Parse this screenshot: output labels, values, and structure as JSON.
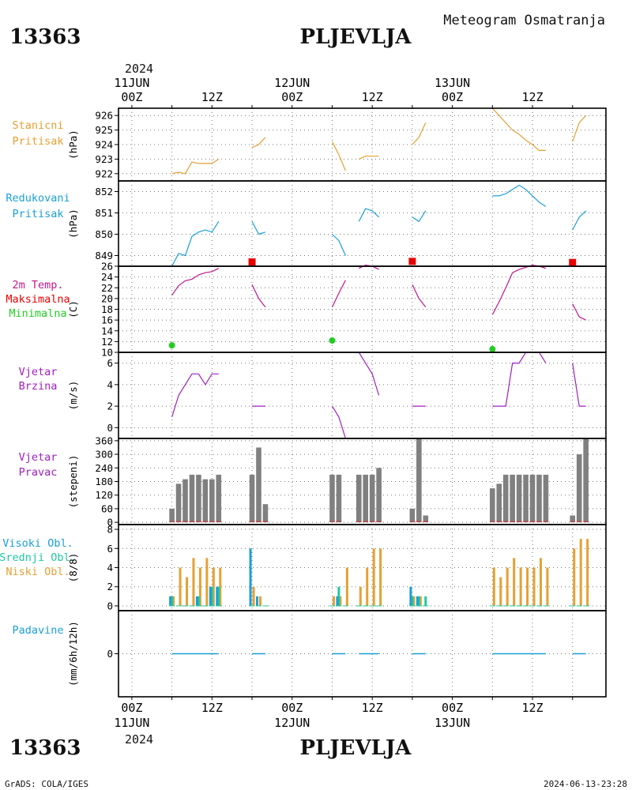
{
  "header": {
    "station_id": "13363",
    "station_name": "PLJEVLJA",
    "product": "Meteogram Osmatranja",
    "year": "2024"
  },
  "footer": {
    "credit": "GrADS: COLA/IGES",
    "timestamp": "2024-06-13-23:28",
    "station_id": "13363",
    "station_name": "PLJEVLJA",
    "year": "2024"
  },
  "time_axis": {
    "labels": [
      {
        "h": 0,
        "hour": "00Z",
        "date": "11JUN"
      },
      {
        "h": 12,
        "hour": "12Z",
        "date": ""
      },
      {
        "h": 24,
        "hour": "00Z",
        "date": "12JUN"
      },
      {
        "h": 36,
        "hour": "12Z",
        "date": ""
      },
      {
        "h": 48,
        "hour": "00Z",
        "date": "13JUN"
      },
      {
        "h": 60,
        "hour": "12Z",
        "date": ""
      }
    ]
  },
  "colors": {
    "station_pressure": "#e6a033",
    "reduced_pressure": "#1aa0d8",
    "tmax": "#e80000",
    "tmin": "#22cc22",
    "temp": "#c0188c",
    "wind": "#a020c0",
    "bars": "#808080",
    "high_cloud": "#1aa0d8",
    "mid_cloud": "#20c8a0",
    "low_cloud": "#e6a033",
    "precip": "#1aa0d8"
  },
  "chart_data": [
    {
      "type": "line",
      "panel": "station_pressure",
      "labels": [
        "Stanicni",
        "Pritisak"
      ],
      "unit": "(hPa)",
      "ylim": [
        921.5,
        926.5
      ],
      "yticks": [
        922,
        923,
        924,
        925,
        926
      ],
      "segments": [
        [
          [
            6,
            922
          ],
          [
            7,
            922.1
          ],
          [
            8,
            922
          ],
          [
            9,
            922.8
          ],
          [
            10,
            922.7
          ],
          [
            11,
            922.7
          ],
          [
            12,
            922.7
          ],
          [
            13,
            923
          ]
        ],
        [
          [
            18,
            923.8
          ],
          [
            19,
            924
          ],
          [
            20,
            924.5
          ]
        ],
        [
          [
            30,
            924.2
          ],
          [
            31,
            923.3
          ],
          [
            32,
            922.2
          ]
        ],
        [
          [
            34,
            923
          ],
          [
            35,
            923.2
          ],
          [
            36,
            923.2
          ],
          [
            37,
            923.2
          ]
        ],
        [
          [
            42,
            924
          ],
          [
            43,
            924.5
          ],
          [
            44,
            925.5
          ]
        ],
        [
          [
            54,
            926.5
          ],
          [
            55,
            926
          ],
          [
            56,
            925.5
          ],
          [
            57,
            925
          ],
          [
            58,
            924.7
          ],
          [
            59,
            924.3
          ],
          [
            60,
            924
          ],
          [
            61,
            923.6
          ],
          [
            62,
            923.6
          ]
        ],
        [
          [
            66,
            924.2
          ],
          [
            67,
            925.5
          ],
          [
            68,
            926
          ]
        ]
      ]
    },
    {
      "type": "line",
      "panel": "reduced_pressure",
      "labels": [
        "Redukovani",
        "Pritisak"
      ],
      "unit": "(hPa)",
      "ylim": [
        848.5,
        852.5
      ],
      "yticks": [
        849,
        850,
        851,
        852
      ],
      "segments": [
        [
          [
            6,
            848.5
          ],
          [
            7,
            849.1
          ],
          [
            8,
            849
          ],
          [
            9,
            849.9
          ],
          [
            10,
            850.1
          ],
          [
            11,
            850.2
          ],
          [
            12,
            850.1
          ],
          [
            13,
            850.6
          ]
        ],
        [
          [
            18,
            850.6
          ],
          [
            19,
            850
          ],
          [
            20,
            850.1
          ]
        ],
        [
          [
            30,
            850
          ],
          [
            31,
            849.7
          ],
          [
            32,
            849
          ]
        ],
        [
          [
            34,
            850.6
          ],
          [
            35,
            851.2
          ],
          [
            36,
            851.1
          ],
          [
            37,
            850.8
          ]
        ],
        [
          [
            42,
            850.8
          ],
          [
            43,
            850.6
          ],
          [
            44,
            851.1
          ]
        ],
        [
          [
            54,
            851.8
          ],
          [
            55,
            851.8
          ],
          [
            56,
            851.9
          ],
          [
            57,
            852.1
          ],
          [
            58,
            852.3
          ],
          [
            59,
            852.1
          ],
          [
            60,
            851.8
          ],
          [
            61,
            851.5
          ],
          [
            62,
            851.3
          ]
        ],
        [
          [
            66,
            850.2
          ],
          [
            67,
            850.8
          ],
          [
            68,
            851.1
          ]
        ]
      ]
    },
    {
      "type": "line",
      "panel": "temperature",
      "labels": [
        "2m Temp.",
        "Maksimalna",
        "Minimalna"
      ],
      "unit": "(C)",
      "ylim": [
        10,
        26
      ],
      "yticks": [
        10,
        12,
        14,
        16,
        18,
        20,
        22,
        24,
        26
      ],
      "segments": [
        [
          [
            6,
            20.6
          ],
          [
            7,
            22.4
          ],
          [
            8,
            23.3
          ],
          [
            9,
            23.6
          ],
          [
            10,
            24.4
          ],
          [
            11,
            24.8
          ],
          [
            12,
            25
          ],
          [
            13,
            25.6
          ]
        ],
        [
          [
            18,
            22.6
          ],
          [
            19,
            20
          ],
          [
            20,
            18.4
          ]
        ],
        [
          [
            30,
            18.4
          ],
          [
            31,
            21
          ],
          [
            32,
            23.4
          ]
        ],
        [
          [
            34,
            25.6
          ],
          [
            35,
            26.2
          ],
          [
            36,
            26
          ],
          [
            37,
            25.4
          ]
        ],
        [
          [
            42,
            22.6
          ],
          [
            43,
            20
          ],
          [
            44,
            18.4
          ]
        ],
        [
          [
            54,
            17
          ],
          [
            55,
            19.4
          ],
          [
            56,
            22
          ],
          [
            57,
            24.8
          ],
          [
            58,
            25.4
          ],
          [
            59,
            25.8
          ],
          [
            60,
            26.2
          ],
          [
            61,
            26
          ],
          [
            62,
            25.6
          ]
        ],
        [
          [
            66,
            19
          ],
          [
            67,
            16.6
          ],
          [
            68,
            16
          ]
        ]
      ],
      "tmax": [
        [
          18,
          26.8
        ],
        [
          42,
          26.9
        ],
        [
          66,
          26.7
        ]
      ],
      "tmin": [
        [
          6,
          11.3
        ],
        [
          30,
          12.2
        ],
        [
          54,
          10.6
        ]
      ]
    },
    {
      "type": "line",
      "panel": "wind_speed",
      "labels": [
        "Vjetar",
        "Brzina"
      ],
      "unit": "(m/s)",
      "ylim": [
        -1,
        7
      ],
      "yticks": [
        0,
        2,
        4,
        6
      ],
      "segments": [
        [
          [
            6,
            1
          ],
          [
            7,
            3
          ],
          [
            8,
            4
          ],
          [
            9,
            5
          ],
          [
            10,
            5
          ],
          [
            11,
            4
          ],
          [
            12,
            5
          ],
          [
            13,
            5
          ]
        ],
        [
          [
            18,
            2
          ],
          [
            19,
            2
          ],
          [
            20,
            2
          ]
        ],
        [
          [
            30,
            2
          ],
          [
            31,
            1
          ],
          [
            32,
            -1
          ]
        ],
        [
          [
            34,
            7
          ],
          [
            35,
            6
          ],
          [
            36,
            5
          ],
          [
            37,
            3
          ]
        ],
        [
          [
            42,
            2
          ],
          [
            43,
            2
          ],
          [
            44,
            2
          ]
        ],
        [
          [
            54,
            2
          ],
          [
            55,
            2
          ],
          [
            56,
            2
          ],
          [
            57,
            6
          ],
          [
            58,
            6
          ],
          [
            59,
            7
          ],
          [
            60,
            7
          ],
          [
            61,
            7
          ],
          [
            62,
            6
          ]
        ],
        [
          [
            66,
            6
          ],
          [
            67,
            2
          ],
          [
            68,
            2
          ]
        ]
      ]
    },
    {
      "type": "bar",
      "panel": "wind_direction",
      "labels": [
        "Vjetar",
        "Pravac"
      ],
      "unit": "(stepeni)",
      "ylim": [
        -10,
        370
      ],
      "yticks": [
        0,
        60,
        120,
        180,
        240,
        300,
        360
      ],
      "bars": [
        [
          6,
          60
        ],
        [
          7,
          170
        ],
        [
          8,
          190
        ],
        [
          9,
          210
        ],
        [
          10,
          210
        ],
        [
          11,
          190
        ],
        [
          12,
          190
        ],
        [
          13,
          210
        ],
        [
          18,
          210
        ],
        [
          19,
          330
        ],
        [
          20,
          80
        ],
        [
          30,
          210
        ],
        [
          31,
          210
        ],
        [
          34,
          210
        ],
        [
          35,
          210
        ],
        [
          36,
          210
        ],
        [
          37,
          240
        ],
        [
          42,
          60
        ],
        [
          43,
          370
        ],
        [
          44,
          30
        ],
        [
          54,
          150
        ],
        [
          55,
          170
        ],
        [
          56,
          210
        ],
        [
          57,
          210
        ],
        [
          58,
          210
        ],
        [
          59,
          210
        ],
        [
          60,
          210
        ],
        [
          61,
          210
        ],
        [
          62,
          210
        ],
        [
          66,
          30
        ],
        [
          67,
          300
        ],
        [
          68,
          370
        ]
      ]
    },
    {
      "type": "bar",
      "panel": "clouds",
      "labels": [
        "Visoki Obl.",
        "Srednji Obl.",
        "Niski Obl."
      ],
      "unit": "(8/8)",
      "ylim": [
        -0.5,
        8.5
      ],
      "yticks": [
        0,
        2,
        4,
        6,
        8
      ],
      "low": [
        [
          6,
          1
        ],
        [
          7,
          4
        ],
        [
          8,
          3
        ],
        [
          9,
          5
        ],
        [
          10,
          4
        ],
        [
          11,
          5
        ],
        [
          12,
          4
        ],
        [
          13,
          4
        ],
        [
          18,
          2
        ],
        [
          19,
          1
        ],
        [
          20,
          0
        ],
        [
          30,
          1
        ],
        [
          31,
          1
        ],
        [
          32,
          4
        ],
        [
          34,
          2
        ],
        [
          35,
          4
        ],
        [
          36,
          6
        ],
        [
          37,
          6
        ],
        [
          42,
          1
        ],
        [
          43,
          1
        ],
        [
          44,
          0
        ],
        [
          54,
          4
        ],
        [
          55,
          3
        ],
        [
          56,
          4
        ],
        [
          57,
          5
        ],
        [
          58,
          4
        ],
        [
          59,
          4
        ],
        [
          60,
          4
        ],
        [
          61,
          5
        ],
        [
          62,
          4
        ],
        [
          66,
          6
        ],
        [
          67,
          7
        ],
        [
          68,
          7
        ]
      ],
      "mid": [
        [
          6,
          1
        ],
        [
          7,
          0
        ],
        [
          8,
          0
        ],
        [
          9,
          0
        ],
        [
          10,
          1
        ],
        [
          11,
          0
        ],
        [
          12,
          2
        ],
        [
          13,
          2
        ],
        [
          18,
          0
        ],
        [
          19,
          0
        ],
        [
          20,
          0
        ],
        [
          30,
          0
        ],
        [
          31,
          2
        ],
        [
          32,
          0
        ],
        [
          34,
          0
        ],
        [
          35,
          0
        ],
        [
          36,
          0
        ],
        [
          37,
          0
        ],
        [
          42,
          1
        ],
        [
          43,
          1
        ],
        [
          44,
          1
        ],
        [
          54,
          0
        ],
        [
          55,
          0
        ],
        [
          56,
          0
        ],
        [
          57,
          0
        ],
        [
          58,
          0
        ],
        [
          59,
          0
        ],
        [
          60,
          0
        ],
        [
          61,
          0
        ],
        [
          62,
          0
        ],
        [
          66,
          0
        ],
        [
          67,
          0
        ],
        [
          68,
          0
        ]
      ],
      "high": [
        [
          6,
          1
        ],
        [
          7,
          0
        ],
        [
          8,
          0
        ],
        [
          9,
          0
        ],
        [
          10,
          1
        ],
        [
          11,
          0
        ],
        [
          12,
          2
        ],
        [
          13,
          2
        ],
        [
          18,
          6
        ],
        [
          19,
          1
        ],
        [
          20,
          0
        ],
        [
          30,
          0
        ],
        [
          31,
          1
        ],
        [
          32,
          0
        ],
        [
          34,
          0
        ],
        [
          35,
          0
        ],
        [
          36,
          0
        ],
        [
          37,
          0
        ],
        [
          42,
          2
        ],
        [
          43,
          1
        ],
        [
          44,
          0
        ],
        [
          54,
          0
        ],
        [
          55,
          0
        ],
        [
          56,
          0
        ],
        [
          57,
          0
        ],
        [
          58,
          0
        ],
        [
          59,
          0
        ],
        [
          60,
          0
        ],
        [
          61,
          0
        ],
        [
          62,
          0
        ],
        [
          66,
          0
        ],
        [
          67,
          0
        ],
        [
          68,
          0
        ]
      ]
    },
    {
      "type": "line",
      "panel": "precipitation",
      "labels": [
        "Padavine"
      ],
      "unit": "(mm/6h/12h)",
      "ylim": [
        -1,
        1
      ],
      "yticks": [
        0
      ],
      "segments": [
        [
          [
            6,
            0
          ],
          [
            13,
            0
          ]
        ],
        [
          [
            18,
            0
          ],
          [
            20,
            0
          ]
        ],
        [
          [
            30,
            0
          ],
          [
            32,
            0
          ]
        ],
        [
          [
            34,
            0
          ],
          [
            37,
            0
          ]
        ],
        [
          [
            42,
            0
          ],
          [
            44,
            0
          ]
        ],
        [
          [
            54,
            0
          ],
          [
            62,
            0
          ]
        ],
        [
          [
            66,
            0
          ],
          [
            68,
            0
          ]
        ]
      ]
    }
  ]
}
